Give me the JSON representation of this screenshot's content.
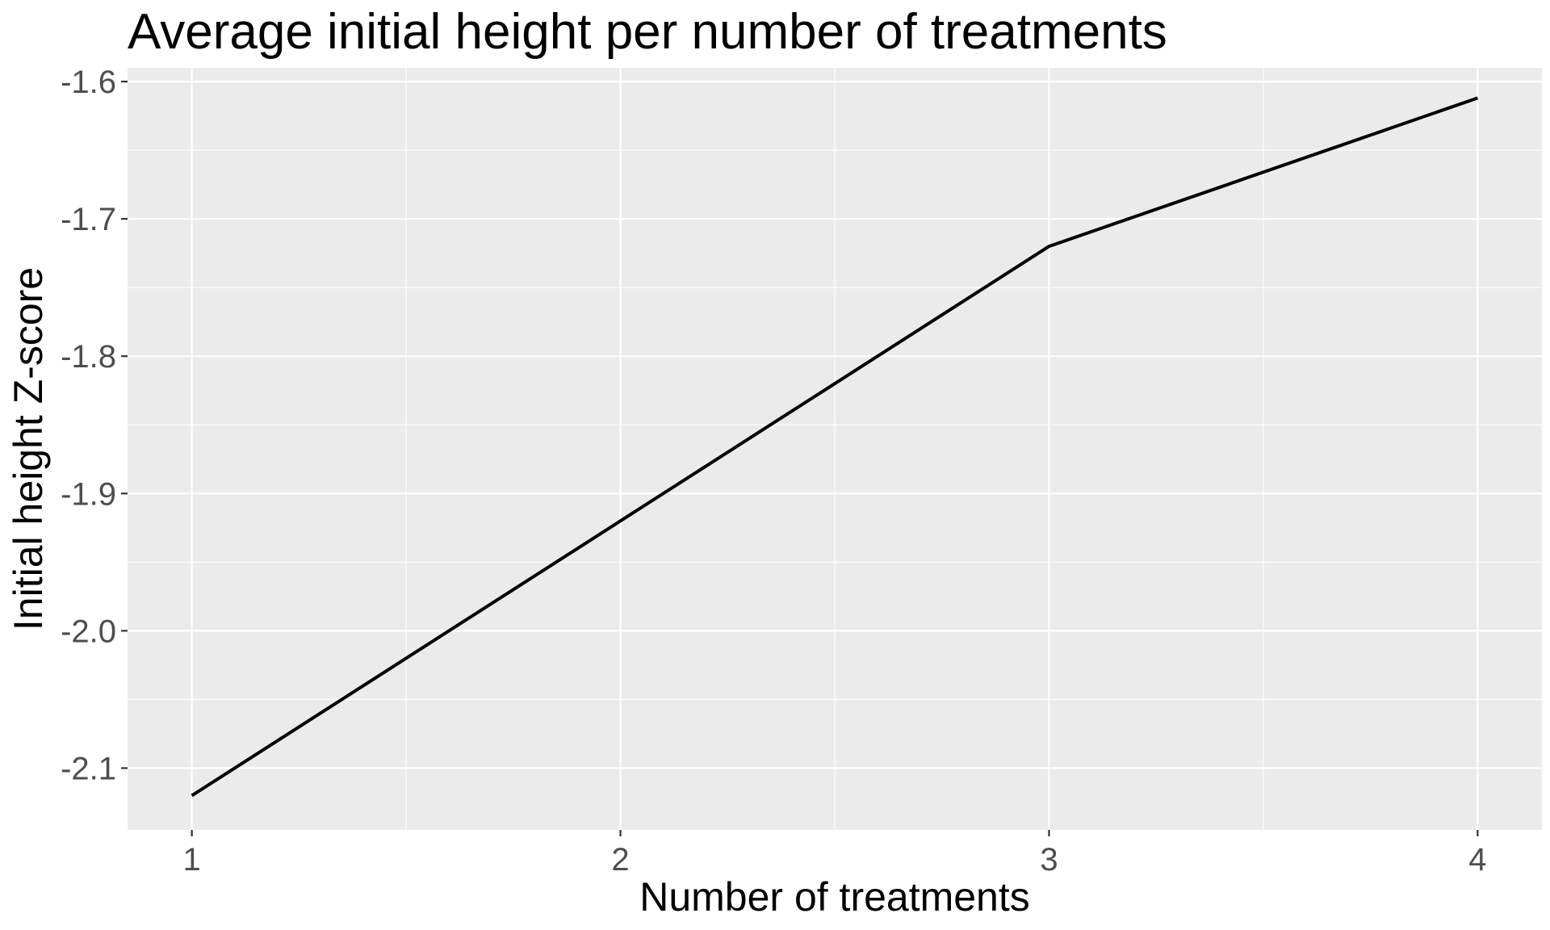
{
  "chart_data": {
    "type": "line",
    "title": "Average initial height per number of treatments",
    "xlabel": "Number of treatments",
    "ylabel": "Initial height Z-score",
    "x": [
      1,
      2,
      3,
      4
    ],
    "series": [
      {
        "values": [
          -2.12,
          -1.92,
          -1.72,
          -1.612
        ]
      }
    ],
    "xlim": [
      0.85,
      4.15
    ],
    "ylim": [
      -2.145,
      -1.59
    ],
    "x_ticks": [
      1,
      2,
      3,
      4
    ],
    "x_tick_labels": [
      "1",
      "2",
      "3",
      "4"
    ],
    "y_ticks": [
      -2.1,
      -2.0,
      -1.9,
      -1.8,
      -1.7,
      -1.6
    ],
    "y_tick_labels": [
      "-2.1",
      "-2.0",
      "-1.9",
      "-1.8",
      "-1.7",
      "-1.6"
    ],
    "grid": true,
    "legend": "none",
    "colors": {
      "panel": "#ebebeb",
      "grid": "#ffffff",
      "line": "#000000",
      "tick_text": "#4d4d4d"
    }
  }
}
